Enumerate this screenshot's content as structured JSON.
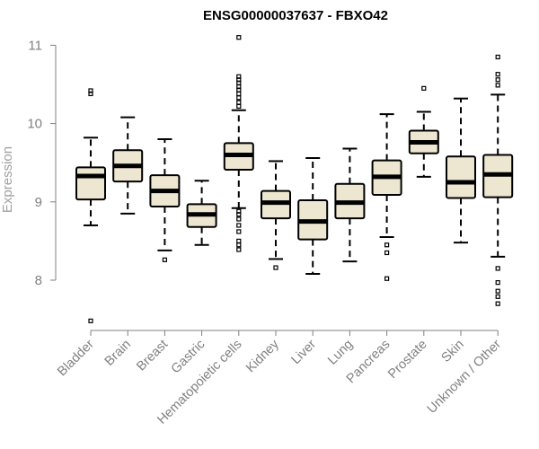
{
  "chart_data": {
    "type": "boxplot",
    "title": "ENSG00000037637 - FBXO42",
    "ylabel": "Expression",
    "xlabel": "",
    "ylim": [
      7.4,
      11.15
    ],
    "yticks": [
      8,
      9,
      10,
      11
    ],
    "colors": {
      "box_fill": "#ede6d0",
      "box_stroke": "#000000",
      "axis": "#808080",
      "label": "#808080"
    },
    "categories": [
      "Bladder",
      "Brain",
      "Breast",
      "Gastric",
      "Hematopoietic cells",
      "Kidney",
      "Liver",
      "Lung",
      "Pancreas",
      "Prostate",
      "Skin",
      "Unknown / Other"
    ],
    "boxes": [
      {
        "name": "Bladder",
        "whisker_low": 8.7,
        "q1": 9.03,
        "median": 9.33,
        "q3": 9.44,
        "whisker_high": 9.82,
        "outliers": [
          10.38,
          10.42,
          7.48
        ]
      },
      {
        "name": "Brain",
        "whisker_low": 8.85,
        "q1": 9.26,
        "median": 9.46,
        "q3": 9.66,
        "whisker_high": 10.08,
        "outliers": []
      },
      {
        "name": "Breast",
        "whisker_low": 8.38,
        "q1": 8.94,
        "median": 9.14,
        "q3": 9.34,
        "whisker_high": 9.8,
        "outliers": [
          8.26
        ]
      },
      {
        "name": "Gastric",
        "whisker_low": 8.45,
        "q1": 8.68,
        "median": 8.84,
        "q3": 8.97,
        "whisker_high": 9.27,
        "outliers": []
      },
      {
        "name": "Hematopoietic cells",
        "whisker_low": 8.92,
        "q1": 9.41,
        "median": 9.6,
        "q3": 9.75,
        "whisker_high": 10.17,
        "outliers": [
          11.1,
          10.6,
          10.56,
          10.52,
          10.47,
          10.43,
          10.38,
          10.33,
          10.27,
          10.22,
          8.88,
          8.84,
          8.78,
          8.7,
          8.62,
          8.5,
          8.45,
          8.39
        ]
      },
      {
        "name": "Kidney",
        "whisker_low": 8.27,
        "q1": 8.79,
        "median": 8.99,
        "q3": 9.14,
        "whisker_high": 9.52,
        "outliers": [
          8.16
        ]
      },
      {
        "name": "Liver",
        "whisker_low": 8.08,
        "q1": 8.52,
        "median": 8.75,
        "q3": 9.02,
        "whisker_high": 9.56,
        "outliers": []
      },
      {
        "name": "Lung",
        "whisker_low": 8.24,
        "q1": 8.79,
        "median": 8.99,
        "q3": 9.23,
        "whisker_high": 9.68,
        "outliers": []
      },
      {
        "name": "Pancreas",
        "whisker_low": 8.55,
        "q1": 9.09,
        "median": 9.32,
        "q3": 9.53,
        "whisker_high": 10.12,
        "outliers": [
          8.45,
          8.35,
          8.02
        ]
      },
      {
        "name": "Prostate",
        "whisker_low": 9.32,
        "q1": 9.62,
        "median": 9.76,
        "q3": 9.91,
        "whisker_high": 10.15,
        "outliers": [
          10.45
        ]
      },
      {
        "name": "Skin",
        "whisker_low": 8.48,
        "q1": 9.05,
        "median": 9.25,
        "q3": 9.58,
        "whisker_high": 10.32,
        "outliers": []
      },
      {
        "name": "Unknown / Other",
        "whisker_low": 8.3,
        "q1": 9.06,
        "median": 9.35,
        "q3": 9.6,
        "whisker_high": 10.37,
        "outliers": [
          10.85,
          10.63,
          10.56,
          10.49,
          8.15,
          7.97,
          7.86,
          7.79,
          7.7
        ]
      }
    ]
  }
}
